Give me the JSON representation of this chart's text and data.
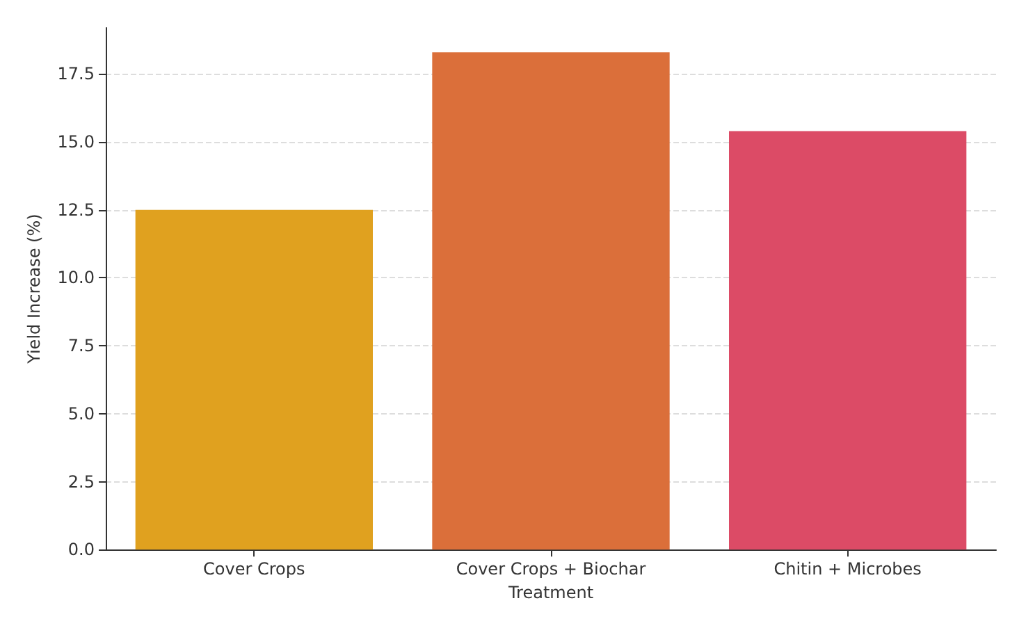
{
  "chart_data": {
    "type": "bar",
    "xlabel": "Treatment",
    "ylabel": "Yield Increase (%)",
    "categories": [
      "Cover Crops",
      "Cover Crops + Biochar",
      "Chitin + Microbes"
    ],
    "values": [
      12.5,
      18.3,
      15.4
    ],
    "colors": [
      "#e0a11f",
      "#db6f3a",
      "#dc4b66"
    ],
    "ylim": [
      0,
      19.2
    ],
    "yticks": [
      {
        "value": 0,
        "label": "0.0"
      },
      2.5,
      {
        "value": 5,
        "label": "5.0"
      },
      7.5,
      {
        "value": 10,
        "label": "10.0"
      },
      12.5,
      {
        "value": 15,
        "label": "15.0"
      },
      17.5
    ],
    "grid": "y"
  }
}
